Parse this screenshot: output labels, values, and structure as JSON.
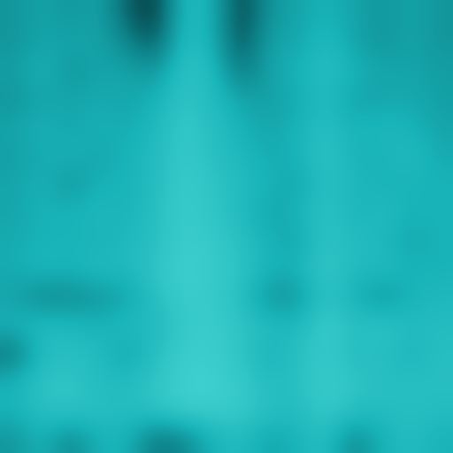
{
  "chart_data": {
    "type": "heatmap",
    "tick_labels": false,
    "cells": [
      [
        0.45,
        0.5,
        0.45,
        0.5,
        0.3,
        0.2,
        0.6,
        0.55,
        0.22,
        0.45,
        0.5,
        0.55,
        0.5,
        0.45,
        0.5,
        0.45
      ],
      [
        0.45,
        0.5,
        0.5,
        0.5,
        0.4,
        0.28,
        0.62,
        0.55,
        0.25,
        0.5,
        0.5,
        0.6,
        0.5,
        0.45,
        0.5,
        0.45
      ],
      [
        0.48,
        0.55,
        0.45,
        0.5,
        0.5,
        0.45,
        0.65,
        0.6,
        0.35,
        0.5,
        0.55,
        0.62,
        0.55,
        0.5,
        0.5,
        0.48
      ],
      [
        0.45,
        0.5,
        0.5,
        0.52,
        0.5,
        0.55,
        0.65,
        0.6,
        0.5,
        0.48,
        0.52,
        0.6,
        0.5,
        0.5,
        0.52,
        0.48
      ],
      [
        0.5,
        0.55,
        0.5,
        0.55,
        0.52,
        0.58,
        0.68,
        0.62,
        0.55,
        0.5,
        0.55,
        0.62,
        0.55,
        0.58,
        0.55,
        0.5
      ],
      [
        0.48,
        0.52,
        0.55,
        0.5,
        0.55,
        0.6,
        0.68,
        0.62,
        0.58,
        0.52,
        0.55,
        0.65,
        0.55,
        0.55,
        0.6,
        0.52
      ],
      [
        0.5,
        0.55,
        0.45,
        0.55,
        0.55,
        0.6,
        0.7,
        0.65,
        0.6,
        0.55,
        0.5,
        0.62,
        0.58,
        0.55,
        0.55,
        0.55
      ],
      [
        0.5,
        0.55,
        0.55,
        0.58,
        0.55,
        0.62,
        0.7,
        0.65,
        0.6,
        0.5,
        0.55,
        0.65,
        0.55,
        0.6,
        0.55,
        0.55
      ],
      [
        0.52,
        0.55,
        0.55,
        0.55,
        0.58,
        0.62,
        0.7,
        0.68,
        0.62,
        0.55,
        0.5,
        0.65,
        0.6,
        0.58,
        0.5,
        0.55
      ],
      [
        0.52,
        0.58,
        0.55,
        0.6,
        0.58,
        0.65,
        0.72,
        0.68,
        0.65,
        0.55,
        0.55,
        0.68,
        0.58,
        0.6,
        0.55,
        0.55
      ],
      [
        0.5,
        0.4,
        0.42,
        0.45,
        0.5,
        0.62,
        0.7,
        0.68,
        0.62,
        0.45,
        0.45,
        0.65,
        0.55,
        0.45,
        0.55,
        0.58
      ],
      [
        0.55,
        0.6,
        0.58,
        0.55,
        0.6,
        0.58,
        0.68,
        0.7,
        0.65,
        0.6,
        0.58,
        0.7,
        0.62,
        0.65,
        0.6,
        0.6
      ],
      [
        0.35,
        0.6,
        0.62,
        0.6,
        0.5,
        0.62,
        0.7,
        0.7,
        0.65,
        0.55,
        0.62,
        0.68,
        0.6,
        0.62,
        0.55,
        0.62
      ],
      [
        0.55,
        0.65,
        0.65,
        0.6,
        0.6,
        0.65,
        0.72,
        0.72,
        0.68,
        0.6,
        0.62,
        0.7,
        0.65,
        0.62,
        0.62,
        0.62
      ],
      [
        0.55,
        0.62,
        0.65,
        0.62,
        0.6,
        0.65,
        0.7,
        0.7,
        0.68,
        0.62,
        0.6,
        0.68,
        0.62,
        0.6,
        0.62,
        0.6
      ],
      [
        0.45,
        0.55,
        0.4,
        0.55,
        0.55,
        0.35,
        0.4,
        0.55,
        0.6,
        0.5,
        0.55,
        0.62,
        0.4,
        0.55,
        0.6,
        0.55
      ]
    ]
  }
}
